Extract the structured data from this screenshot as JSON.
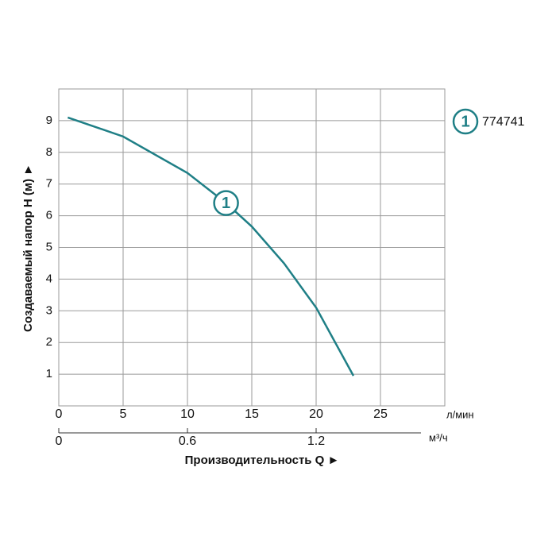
{
  "chart_data": {
    "type": "line",
    "xlabel": "Производительность Q ►",
    "ylabel": "Создаваемый напор Н (м) ►",
    "x_unit": "л/мин",
    "x2_unit": "м³/ч",
    "x": [
      0.7,
      5,
      10,
      13,
      15,
      17.5,
      20,
      22.9
    ],
    "series": [
      {
        "name": "774741",
        "marker_label": "1",
        "color": "#1f7f86",
        "values": [
          9.1,
          8.5,
          7.35,
          6.4,
          5.66,
          4.5,
          3.1,
          0.95
        ]
      }
    ],
    "xlim": [
      0,
      30
    ],
    "xticks": [
      0,
      5,
      10,
      15,
      20,
      25
    ],
    "x2lim": [
      0,
      1.8
    ],
    "x2ticks": [
      0,
      0.6,
      1.2
    ],
    "ylim": [
      0,
      10
    ],
    "yticks": [
      1,
      2,
      3,
      4,
      5,
      6,
      7,
      8,
      9
    ],
    "grid": true
  }
}
